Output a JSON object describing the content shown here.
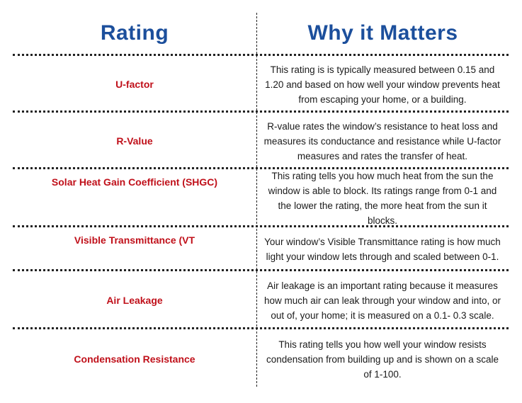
{
  "headers": {
    "rating": "Rating",
    "why": "Why it Matters"
  },
  "rows": [
    {
      "rating": "U-factor",
      "why": "This rating is is typically measured between 0.15 and 1.20 and based on how well your window prevents heat from escaping your home, or a building."
    },
    {
      "rating": "R-Value",
      "why": "R-value rates the window’s resistance to heat loss and measures its conductance and resistance while U-factor measures and rates the transfer of heat."
    },
    {
      "rating": "Solar Heat Gain Coefficient (SHGC)",
      "why": "This rating tells you how much heat from the sun the window is able to block. Its ratings range from 0-1 and the lower the rating, the more heat from the sun it blocks."
    },
    {
      "rating": "Visible Transmittance (VT",
      "why": "Your window’s Visible Transmittance rating is how much light your window lets through and scaled between 0-1."
    },
    {
      "rating": "Air Leakage",
      "why": "Air leakage is an important rating because it measures how much air can leak through your window and into, or out of, your home; it is measured on a 0.1- 0.3 scale."
    },
    {
      "rating": "Condensation Resistance",
      "why": "This rating tells you how well your window resists condensation from building up and is shown on a scale of 1-100."
    }
  ]
}
